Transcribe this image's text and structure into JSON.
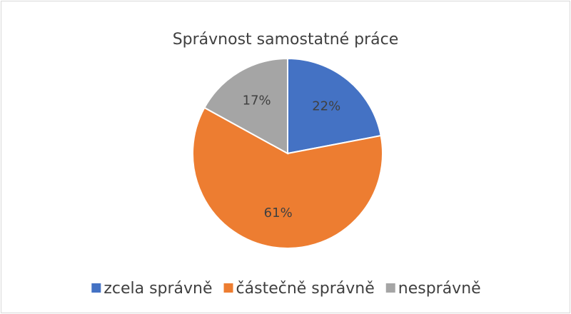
{
  "chart_data": {
    "type": "pie",
    "title": "Správnost samostatné práce",
    "categories": [
      "zcela správně",
      "částečně správně",
      "nesprávně"
    ],
    "values": [
      22,
      61,
      17
    ],
    "value_labels": [
      "22%",
      "61%",
      "17%"
    ],
    "colors": [
      "#4472c4",
      "#ed7d31",
      "#a5a5a5"
    ],
    "legend": "bottom"
  }
}
